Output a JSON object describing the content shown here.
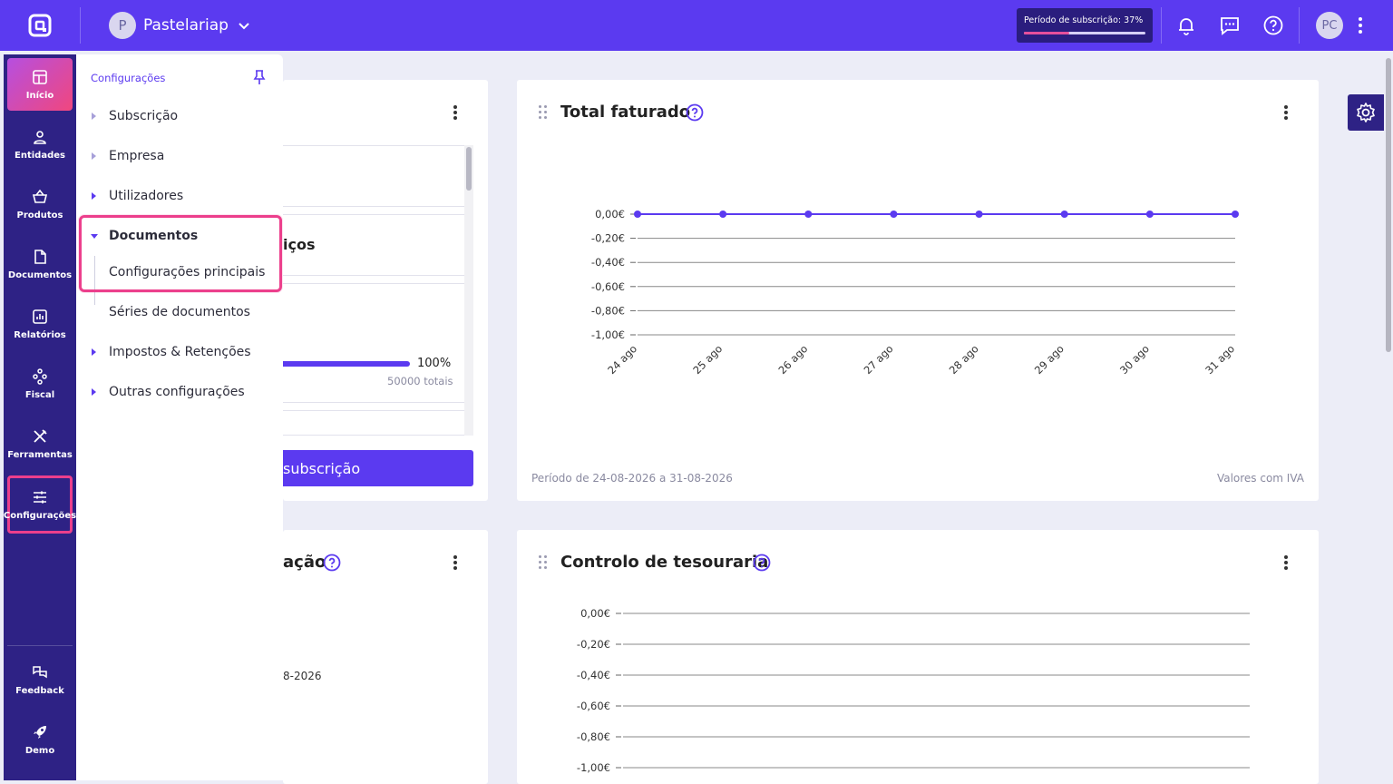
{
  "header": {
    "logo_icon": "app-logo-icon",
    "company_initial": "P",
    "company_name": "Pastelariap",
    "subscription_label": "Período de subscrição: 37%",
    "subscription_progress": 0.37,
    "user_initials": "PC"
  },
  "rail": {
    "items": [
      {
        "label": "Início",
        "icon": "dashboard-icon"
      },
      {
        "label": "Entidades",
        "icon": "person-icon"
      },
      {
        "label": "Produtos",
        "icon": "basket-icon"
      },
      {
        "label": "Documentos",
        "icon": "document-icon"
      },
      {
        "label": "Relatórios",
        "icon": "report-icon"
      },
      {
        "label": "Fiscal",
        "icon": "fiscal-icon"
      },
      {
        "label": "Ferramentas",
        "icon": "tools-icon"
      },
      {
        "label": "Configurações",
        "icon": "sliders-icon"
      }
    ],
    "bottom": [
      {
        "label": "Feedback",
        "icon": "feedback-icon"
      },
      {
        "label": "Demo",
        "icon": "rocket-icon"
      }
    ]
  },
  "settings_menu": {
    "title": "Configurações",
    "items": [
      {
        "label": "Subscrição"
      },
      {
        "label": "Empresa"
      },
      {
        "label": "Utilizadores"
      },
      {
        "label": "Documentos"
      },
      {
        "label": "Configurações principais"
      },
      {
        "label": "Séries de documentos"
      },
      {
        "label": "Impostos & Retenções"
      },
      {
        "label": "Outras configurações"
      }
    ]
  },
  "left_card": {
    "partial_title": "iços",
    "progress_pct": "100%",
    "progress_value": 1.0,
    "totals": "50000 totais",
    "button_partial": "subscrição",
    "bottom_partial_title": "ação",
    "bottom_partial_date": "8-2026"
  },
  "total_faturado": {
    "title": "Total faturado",
    "footer_left": "Período de 24-08-2026 a 31-08-2026",
    "footer_right": "Valores com IVA"
  },
  "tesouraria": {
    "title": "Controlo de tesouraria"
  },
  "chart_data": [
    {
      "type": "line",
      "title": "Total faturado",
      "categories": [
        "24 ago",
        "25 ago",
        "26 ago",
        "27 ago",
        "28 ago",
        "29 ago",
        "30 ago",
        "31 ago"
      ],
      "series": [
        {
          "values": [
            0,
            0,
            0,
            0,
            0,
            0,
            0,
            0
          ]
        }
      ],
      "yticks": [
        "0,00€",
        "-0,20€",
        "-0,40€",
        "-0,60€",
        "-0,80€",
        "-1,00€"
      ],
      "ylim": [
        -1.0,
        0.0
      ],
      "color": "#5b3af0",
      "grid": true
    },
    {
      "type": "line",
      "title": "Controlo de tesouraria",
      "yticks": [
        "0,00€",
        "-0,20€",
        "-0,40€",
        "-0,60€",
        "-0,80€",
        "-1,00€"
      ],
      "ylim": [
        -1.0,
        0.0
      ],
      "grid": true
    }
  ]
}
